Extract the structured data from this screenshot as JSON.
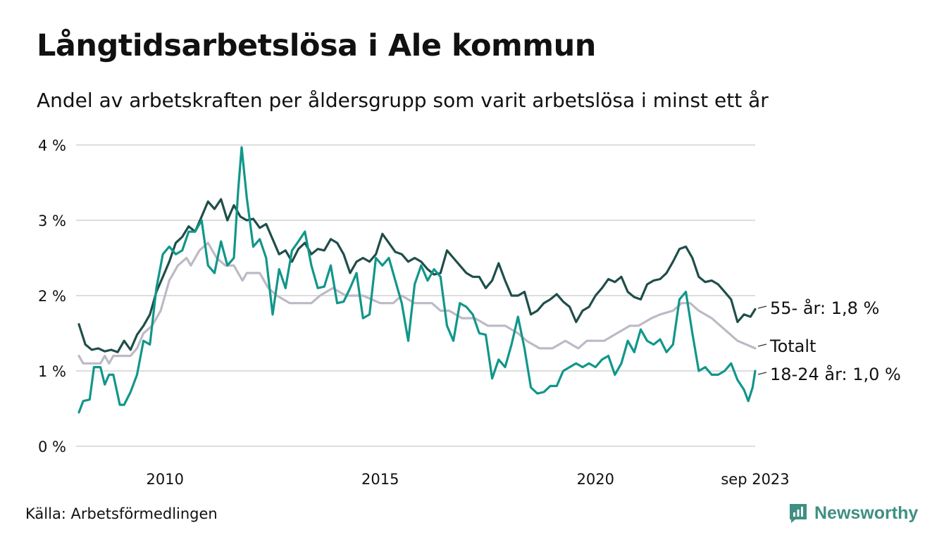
{
  "title": "Långtidsarbetslösa i Ale kommun",
  "subtitle": "Andel av arbetskraften per åldersgrupp som varit arbetslösa i minst ett år",
  "source": "Källa: Arbetsförmedlingen",
  "brand": "Newsworthy",
  "colors": {
    "s55": "#1f4e4a",
    "total": "#bdb9c6",
    "s1824": "#11968a",
    "grid": "#dddddd",
    "brand": "#3f8f82"
  },
  "chart_data": {
    "type": "line",
    "title": "Långtidsarbetslösa i Ale kommun",
    "xlabel": "",
    "ylabel": "",
    "x_ticks": [
      {
        "value": 2010,
        "label": "2010"
      },
      {
        "value": 2015,
        "label": "2015"
      },
      {
        "value": 2020,
        "label": "2020"
      },
      {
        "value": 2023.71,
        "label": "sep 2023"
      }
    ],
    "y_ticks": [
      {
        "value": 0,
        "label": "0 %"
      },
      {
        "value": 1,
        "label": "1 %"
      },
      {
        "value": 2,
        "label": "2 %"
      },
      {
        "value": 3,
        "label": "3 %"
      },
      {
        "value": 4,
        "label": "4 %"
      }
    ],
    "xlim": [
      2008.0,
      2023.71
    ],
    "ylim": [
      0,
      4
    ],
    "series": [
      {
        "name": "Totalt",
        "label": "Totalt",
        "color": "#bdb9c6",
        "points": [
          [
            2008.0,
            1.2
          ],
          [
            2008.1,
            1.1
          ],
          [
            2008.5,
            1.1
          ],
          [
            2008.6,
            1.2
          ],
          [
            2008.7,
            1.1
          ],
          [
            2008.8,
            1.2
          ],
          [
            2009.2,
            1.2
          ],
          [
            2009.35,
            1.3
          ],
          [
            2009.5,
            1.5
          ],
          [
            2009.7,
            1.6
          ],
          [
            2009.9,
            1.8
          ],
          [
            2010.1,
            2.2
          ],
          [
            2010.3,
            2.4
          ],
          [
            2010.5,
            2.5
          ],
          [
            2010.6,
            2.4
          ],
          [
            2010.8,
            2.6
          ],
          [
            2011.0,
            2.7
          ],
          [
            2011.2,
            2.5
          ],
          [
            2011.4,
            2.4
          ],
          [
            2011.6,
            2.4
          ],
          [
            2011.8,
            2.2
          ],
          [
            2011.9,
            2.3
          ],
          [
            2012.2,
            2.3
          ],
          [
            2012.4,
            2.1
          ],
          [
            2012.6,
            2.0
          ],
          [
            2012.9,
            1.9
          ],
          [
            2013.4,
            1.9
          ],
          [
            2013.6,
            2.0
          ],
          [
            2013.9,
            2.1
          ],
          [
            2014.2,
            2.0
          ],
          [
            2014.6,
            2.0
          ],
          [
            2014.8,
            1.95
          ],
          [
            2015.0,
            1.9
          ],
          [
            2015.3,
            1.9
          ],
          [
            2015.5,
            2.0
          ],
          [
            2015.8,
            1.9
          ],
          [
            2016.2,
            1.9
          ],
          [
            2016.4,
            1.8
          ],
          [
            2016.6,
            1.8
          ],
          [
            2016.9,
            1.7
          ],
          [
            2017.2,
            1.7
          ],
          [
            2017.5,
            1.6
          ],
          [
            2017.9,
            1.6
          ],
          [
            2018.2,
            1.5
          ],
          [
            2018.4,
            1.4
          ],
          [
            2018.7,
            1.3
          ],
          [
            2019.0,
            1.3
          ],
          [
            2019.3,
            1.4
          ],
          [
            2019.6,
            1.3
          ],
          [
            2019.8,
            1.4
          ],
          [
            2020.2,
            1.4
          ],
          [
            2020.5,
            1.5
          ],
          [
            2020.8,
            1.6
          ],
          [
            2021.0,
            1.6
          ],
          [
            2021.3,
            1.7
          ],
          [
            2021.5,
            1.75
          ],
          [
            2021.8,
            1.8
          ],
          [
            2022.0,
            1.9
          ],
          [
            2022.2,
            1.9
          ],
          [
            2022.4,
            1.8
          ],
          [
            2022.7,
            1.7
          ],
          [
            2022.9,
            1.6
          ],
          [
            2023.1,
            1.5
          ],
          [
            2023.3,
            1.4
          ],
          [
            2023.71,
            1.3
          ]
        ]
      },
      {
        "name": "55- år",
        "label": "55- år: 1,8 %",
        "color": "#1f4e4a",
        "points": [
          [
            2008.0,
            1.62
          ],
          [
            2008.15,
            1.35
          ],
          [
            2008.3,
            1.28
          ],
          [
            2008.45,
            1.3
          ],
          [
            2008.6,
            1.26
          ],
          [
            2008.75,
            1.28
          ],
          [
            2008.9,
            1.25
          ],
          [
            2009.05,
            1.4
          ],
          [
            2009.2,
            1.28
          ],
          [
            2009.35,
            1.48
          ],
          [
            2009.5,
            1.6
          ],
          [
            2009.65,
            1.75
          ],
          [
            2009.8,
            2.05
          ],
          [
            2009.95,
            2.25
          ],
          [
            2010.1,
            2.45
          ],
          [
            2010.25,
            2.7
          ],
          [
            2010.4,
            2.78
          ],
          [
            2010.55,
            2.92
          ],
          [
            2010.7,
            2.85
          ],
          [
            2010.85,
            3.05
          ],
          [
            2011.0,
            3.25
          ],
          [
            2011.15,
            3.15
          ],
          [
            2011.3,
            3.28
          ],
          [
            2011.45,
            3.0
          ],
          [
            2011.6,
            3.2
          ],
          [
            2011.75,
            3.05
          ],
          [
            2011.9,
            3.0
          ],
          [
            2012.05,
            3.02
          ],
          [
            2012.2,
            2.9
          ],
          [
            2012.35,
            2.95
          ],
          [
            2012.5,
            2.75
          ],
          [
            2012.65,
            2.55
          ],
          [
            2012.8,
            2.6
          ],
          [
            2012.95,
            2.45
          ],
          [
            2013.1,
            2.62
          ],
          [
            2013.25,
            2.7
          ],
          [
            2013.4,
            2.55
          ],
          [
            2013.55,
            2.62
          ],
          [
            2013.7,
            2.6
          ],
          [
            2013.85,
            2.75
          ],
          [
            2014.0,
            2.7
          ],
          [
            2014.15,
            2.55
          ],
          [
            2014.3,
            2.3
          ],
          [
            2014.45,
            2.45
          ],
          [
            2014.6,
            2.5
          ],
          [
            2014.75,
            2.45
          ],
          [
            2014.9,
            2.55
          ],
          [
            2015.05,
            2.82
          ],
          [
            2015.2,
            2.7
          ],
          [
            2015.35,
            2.58
          ],
          [
            2015.5,
            2.55
          ],
          [
            2015.65,
            2.45
          ],
          [
            2015.8,
            2.5
          ],
          [
            2015.95,
            2.45
          ],
          [
            2016.1,
            2.35
          ],
          [
            2016.25,
            2.28
          ],
          [
            2016.4,
            2.3
          ],
          [
            2016.55,
            2.6
          ],
          [
            2016.7,
            2.5
          ],
          [
            2016.85,
            2.4
          ],
          [
            2017.0,
            2.3
          ],
          [
            2017.15,
            2.25
          ],
          [
            2017.3,
            2.25
          ],
          [
            2017.45,
            2.1
          ],
          [
            2017.6,
            2.2
          ],
          [
            2017.75,
            2.43
          ],
          [
            2017.9,
            2.2
          ],
          [
            2018.05,
            2.0
          ],
          [
            2018.2,
            2.0
          ],
          [
            2018.35,
            2.05
          ],
          [
            2018.5,
            1.75
          ],
          [
            2018.65,
            1.8
          ],
          [
            2018.8,
            1.9
          ],
          [
            2018.95,
            1.95
          ],
          [
            2019.1,
            2.02
          ],
          [
            2019.25,
            1.92
          ],
          [
            2019.4,
            1.85
          ],
          [
            2019.55,
            1.65
          ],
          [
            2019.7,
            1.8
          ],
          [
            2019.85,
            1.85
          ],
          [
            2020.0,
            2.0
          ],
          [
            2020.15,
            2.1
          ],
          [
            2020.3,
            2.22
          ],
          [
            2020.45,
            2.18
          ],
          [
            2020.6,
            2.25
          ],
          [
            2020.75,
            2.05
          ],
          [
            2020.9,
            1.98
          ],
          [
            2021.05,
            1.95
          ],
          [
            2021.2,
            2.15
          ],
          [
            2021.35,
            2.2
          ],
          [
            2021.5,
            2.22
          ],
          [
            2021.65,
            2.3
          ],
          [
            2021.8,
            2.45
          ],
          [
            2021.95,
            2.62
          ],
          [
            2022.1,
            2.65
          ],
          [
            2022.25,
            2.5
          ],
          [
            2022.4,
            2.25
          ],
          [
            2022.55,
            2.18
          ],
          [
            2022.7,
            2.2
          ],
          [
            2022.85,
            2.15
          ],
          [
            2023.0,
            2.05
          ],
          [
            2023.15,
            1.95
          ],
          [
            2023.3,
            1.65
          ],
          [
            2023.45,
            1.75
          ],
          [
            2023.6,
            1.72
          ],
          [
            2023.71,
            1.82
          ]
        ]
      },
      {
        "name": "18-24 år",
        "label": "18-24 år: 1,0 %",
        "color": "#11968a",
        "points": [
          [
            2008.0,
            0.45
          ],
          [
            2008.1,
            0.6
          ],
          [
            2008.25,
            0.62
          ],
          [
            2008.35,
            1.05
          ],
          [
            2008.5,
            1.05
          ],
          [
            2008.6,
            0.82
          ],
          [
            2008.7,
            0.95
          ],
          [
            2008.8,
            0.95
          ],
          [
            2008.95,
            0.55
          ],
          [
            2009.05,
            0.55
          ],
          [
            2009.2,
            0.72
          ],
          [
            2009.35,
            0.95
          ],
          [
            2009.5,
            1.4
          ],
          [
            2009.65,
            1.35
          ],
          [
            2009.8,
            2.1
          ],
          [
            2009.95,
            2.55
          ],
          [
            2010.1,
            2.65
          ],
          [
            2010.25,
            2.55
          ],
          [
            2010.4,
            2.6
          ],
          [
            2010.55,
            2.85
          ],
          [
            2010.7,
            2.85
          ],
          [
            2010.85,
            3.0
          ],
          [
            2011.0,
            2.4
          ],
          [
            2011.15,
            2.3
          ],
          [
            2011.3,
            2.72
          ],
          [
            2011.45,
            2.4
          ],
          [
            2011.6,
            2.5
          ],
          [
            2011.7,
            3.4
          ],
          [
            2011.78,
            3.97
          ],
          [
            2011.9,
            3.3
          ],
          [
            2012.05,
            2.65
          ],
          [
            2012.2,
            2.75
          ],
          [
            2012.35,
            2.5
          ],
          [
            2012.5,
            1.75
          ],
          [
            2012.65,
            2.35
          ],
          [
            2012.8,
            2.1
          ],
          [
            2012.95,
            2.6
          ],
          [
            2013.1,
            2.72
          ],
          [
            2013.25,
            2.85
          ],
          [
            2013.4,
            2.4
          ],
          [
            2013.55,
            2.1
          ],
          [
            2013.7,
            2.12
          ],
          [
            2013.85,
            2.4
          ],
          [
            2014.0,
            1.9
          ],
          [
            2014.15,
            1.92
          ],
          [
            2014.3,
            2.1
          ],
          [
            2014.45,
            2.3
          ],
          [
            2014.6,
            1.7
          ],
          [
            2014.75,
            1.75
          ],
          [
            2014.9,
            2.5
          ],
          [
            2015.05,
            2.4
          ],
          [
            2015.2,
            2.5
          ],
          [
            2015.35,
            2.2
          ],
          [
            2015.5,
            1.9
          ],
          [
            2015.65,
            1.4
          ],
          [
            2015.8,
            2.15
          ],
          [
            2015.95,
            2.4
          ],
          [
            2016.1,
            2.2
          ],
          [
            2016.25,
            2.35
          ],
          [
            2016.4,
            2.25
          ],
          [
            2016.55,
            1.6
          ],
          [
            2016.7,
            1.4
          ],
          [
            2016.85,
            1.9
          ],
          [
            2017.0,
            1.85
          ],
          [
            2017.15,
            1.75
          ],
          [
            2017.3,
            1.5
          ],
          [
            2017.45,
            1.48
          ],
          [
            2017.6,
            0.9
          ],
          [
            2017.75,
            1.15
          ],
          [
            2017.9,
            1.05
          ],
          [
            2018.05,
            1.35
          ],
          [
            2018.2,
            1.72
          ],
          [
            2018.35,
            1.3
          ],
          [
            2018.5,
            0.78
          ],
          [
            2018.65,
            0.7
          ],
          [
            2018.8,
            0.72
          ],
          [
            2018.95,
            0.8
          ],
          [
            2019.1,
            0.8
          ],
          [
            2019.25,
            1.0
          ],
          [
            2019.4,
            1.05
          ],
          [
            2019.55,
            1.1
          ],
          [
            2019.7,
            1.05
          ],
          [
            2019.85,
            1.1
          ],
          [
            2020.0,
            1.05
          ],
          [
            2020.15,
            1.15
          ],
          [
            2020.3,
            1.2
          ],
          [
            2020.45,
            0.95
          ],
          [
            2020.6,
            1.1
          ],
          [
            2020.75,
            1.4
          ],
          [
            2020.9,
            1.25
          ],
          [
            2021.05,
            1.55
          ],
          [
            2021.2,
            1.4
          ],
          [
            2021.35,
            1.35
          ],
          [
            2021.5,
            1.42
          ],
          [
            2021.65,
            1.25
          ],
          [
            2021.8,
            1.35
          ],
          [
            2021.95,
            1.95
          ],
          [
            2022.1,
            2.05
          ],
          [
            2022.25,
            1.5
          ],
          [
            2022.4,
            1.0
          ],
          [
            2022.55,
            1.05
          ],
          [
            2022.7,
            0.95
          ],
          [
            2022.85,
            0.95
          ],
          [
            2023.0,
            1.0
          ],
          [
            2023.15,
            1.1
          ],
          [
            2023.3,
            0.88
          ],
          [
            2023.45,
            0.75
          ],
          [
            2023.55,
            0.6
          ],
          [
            2023.65,
            0.78
          ],
          [
            2023.71,
            1.0
          ]
        ]
      }
    ]
  }
}
